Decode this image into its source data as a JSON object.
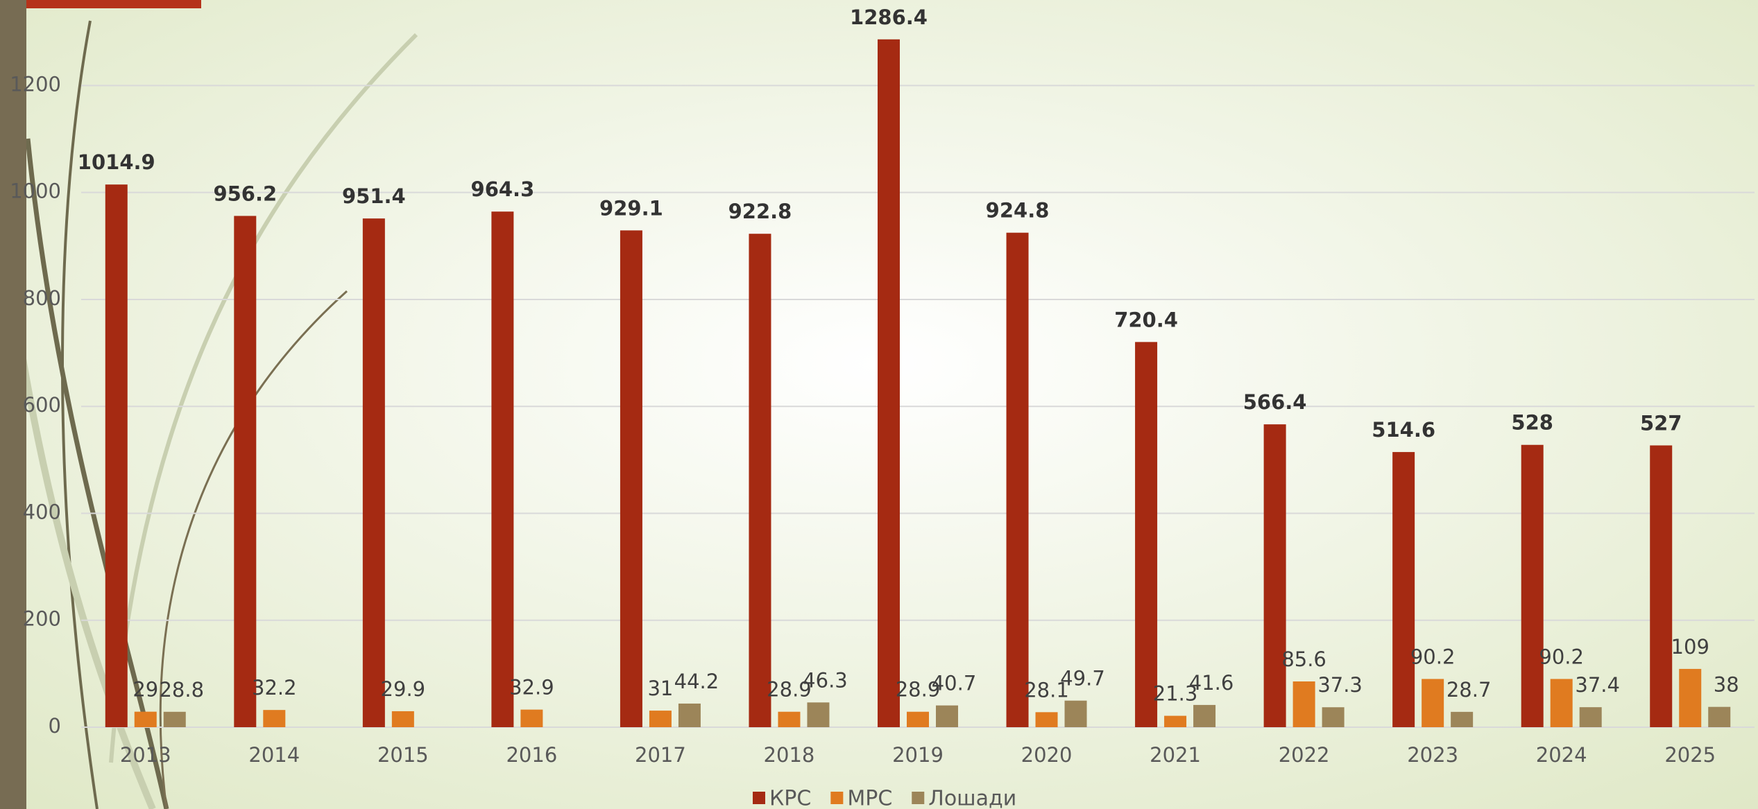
{
  "chart_data": {
    "type": "bar",
    "categories": [
      "2013",
      "2014",
      "2015",
      "2016",
      "2017",
      "2018",
      "2019",
      "2020",
      "2021",
      "2022",
      "2023",
      "2024",
      "2025"
    ],
    "series": [
      {
        "name": "КРС",
        "color": "#a52a12",
        "values": [
          1014.9,
          956.2,
          951.4,
          964.3,
          929.1,
          922.8,
          1286.4,
          924.8,
          720.4,
          566.4,
          514.6,
          528,
          527
        ]
      },
      {
        "name": "МРС",
        "color": "#e07b20",
        "values": [
          29,
          32.2,
          29.9,
          32.9,
          31,
          28.9,
          28.9,
          28.1,
          21.3,
          85.6,
          90.2,
          90.2,
          109
        ]
      },
      {
        "name": "Лошади",
        "color": "#9c8559",
        "values": [
          28.8,
          null,
          null,
          null,
          44.2,
          46.3,
          40.7,
          49.7,
          41.6,
          37.3,
          28.7,
          37.4,
          38
        ]
      }
    ],
    "ylim": [
      0,
      1360
    ],
    "yticks": [
      0,
      200,
      400,
      600,
      800,
      1000,
      1200
    ],
    "grid": true
  }
}
